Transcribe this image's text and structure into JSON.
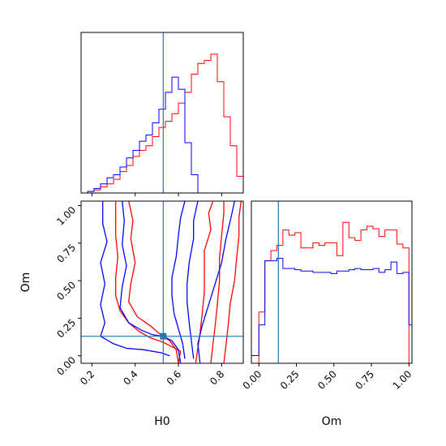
{
  "chart_data": [
    {
      "id": "marg_h0",
      "type": "step-histogram",
      "xlim": [
        0.15,
        0.9
      ],
      "truth": 0.53,
      "colors": {
        "red": "#ff0000",
        "blue": "#0000ff",
        "truth": "#1f77b4"
      },
      "edges": [
        0.15,
        0.18,
        0.21,
        0.24,
        0.27,
        0.3,
        0.33,
        0.36,
        0.39,
        0.42,
        0.45,
        0.48,
        0.51,
        0.54,
        0.57,
        0.6,
        0.63,
        0.66,
        0.69,
        0.72,
        0.75,
        0.78,
        0.81,
        0.84,
        0.87,
        0.9
      ],
      "series": [
        {
          "color": "red",
          "values": [
            0.0,
            0.01,
            0.02,
            0.04,
            0.06,
            0.09,
            0.14,
            0.18,
            0.24,
            0.28,
            0.31,
            0.37,
            0.43,
            0.47,
            0.52,
            0.59,
            0.66,
            0.78,
            0.85,
            0.87,
            0.91,
            0.73,
            0.5,
            0.31,
            0.11
          ]
        },
        {
          "color": "blue",
          "values": [
            0.0,
            0.01,
            0.03,
            0.06,
            0.1,
            0.12,
            0.17,
            0.23,
            0.28,
            0.34,
            0.38,
            0.46,
            0.55,
            0.66,
            0.76,
            0.68,
            0.33,
            0.12,
            0.0,
            0.0,
            0.0,
            0.0,
            0.0,
            0.0,
            0.0
          ]
        }
      ]
    },
    {
      "id": "marg_om",
      "type": "step-histogram",
      "xlim": [
        -0.05,
        1.02
      ],
      "truth": 0.13,
      "colors": {
        "red": "#ff0000",
        "blue": "#0000ff",
        "truth": "#1f77b4"
      },
      "edges": [
        -0.05,
        0.0,
        0.04,
        0.08,
        0.12,
        0.16,
        0.2,
        0.24,
        0.28,
        0.32,
        0.36,
        0.4,
        0.44,
        0.48,
        0.52,
        0.56,
        0.6,
        0.64,
        0.68,
        0.72,
        0.76,
        0.8,
        0.84,
        0.88,
        0.92,
        0.96,
        1.0,
        1.02
      ],
      "series": [
        {
          "color": "red",
          "values": [
            0.0,
            0.4,
            0.8,
            0.88,
            0.92,
            1.04,
            1.0,
            1.02,
            0.9,
            0.9,
            0.94,
            0.92,
            0.94,
            0.94,
            0.84,
            1.1,
            0.98,
            0.96,
            1.04,
            1.07,
            1.05,
            0.99,
            1.04,
            1.04,
            0.93,
            0.9,
            0.0
          ]
        },
        {
          "color": "blue",
          "values": [
            0.06,
            0.3,
            0.8,
            0.8,
            0.82,
            0.74,
            0.74,
            0.73,
            0.72,
            0.72,
            0.71,
            0.71,
            0.71,
            0.7,
            0.72,
            0.72,
            0.73,
            0.74,
            0.73,
            0.73,
            0.74,
            0.71,
            0.73,
            0.79,
            0.7,
            0.71,
            0.3
          ]
        }
      ]
    },
    {
      "id": "joint",
      "type": "contour",
      "xlabel": "H0",
      "ylabel": "Om",
      "xlim": [
        0.15,
        0.9
      ],
      "ylim": [
        -0.05,
        1.03
      ],
      "xticks": [
        0.2,
        0.4,
        0.6,
        0.8
      ],
      "yticks": [
        0.0,
        0.25,
        0.5,
        0.75,
        1.0
      ],
      "truth": {
        "x": 0.53,
        "y": 0.13
      },
      "colors": {
        "red": "#ff0000",
        "blue": "#0000ff",
        "truth": "#1f77b4"
      },
      "contours": [
        {
          "color": "red",
          "points": [
            [
              0.31,
              1.03
            ],
            [
              0.31,
              0.94
            ],
            [
              0.31,
              0.8
            ],
            [
              0.32,
              0.66
            ],
            [
              0.31,
              0.52
            ],
            [
              0.31,
              0.4
            ],
            [
              0.33,
              0.3
            ],
            [
              0.37,
              0.22
            ],
            [
              0.42,
              0.16
            ],
            [
              0.47,
              0.12
            ],
            [
              0.53,
              0.09
            ],
            [
              0.57,
              0.06
            ],
            [
              0.61,
              0.03
            ],
            [
              0.6,
              -0.05
            ]
          ]
        },
        {
          "color": "red",
          "points": [
            [
              0.68,
              -0.05
            ],
            [
              0.69,
              0.05
            ],
            [
              0.7,
              0.15
            ],
            [
              0.71,
              0.28
            ],
            [
              0.72,
              0.42
            ],
            [
              0.72,
              0.58
            ],
            [
              0.72,
              0.7
            ],
            [
              0.75,
              0.84
            ],
            [
              0.74,
              0.95
            ],
            [
              0.76,
              1.03
            ]
          ]
        },
        {
          "color": "red",
          "points": [
            [
              0.75,
              -0.05
            ],
            [
              0.76,
              0.08
            ],
            [
              0.77,
              0.2
            ],
            [
              0.78,
              0.34
            ],
            [
              0.79,
              0.5
            ],
            [
              0.79,
              0.65
            ],
            [
              0.8,
              0.8
            ],
            [
              0.81,
              0.95
            ],
            [
              0.81,
              1.03
            ]
          ]
        },
        {
          "color": "red",
          "points": [
            [
              0.81,
              -0.05
            ],
            [
              0.82,
              0.07
            ],
            [
              0.83,
              0.2
            ],
            [
              0.84,
              0.35
            ],
            [
              0.86,
              0.5
            ],
            [
              0.87,
              0.66
            ],
            [
              0.88,
              0.8
            ],
            [
              0.88,
              0.92
            ],
            [
              0.89,
              1.03
            ]
          ]
        },
        {
          "color": "red",
          "points": [
            [
              0.37,
              1.03
            ],
            [
              0.39,
              0.9
            ],
            [
              0.38,
              0.78
            ],
            [
              0.4,
              0.62
            ],
            [
              0.38,
              0.48
            ],
            [
              0.37,
              0.36
            ],
            [
              0.41,
              0.26
            ],
            [
              0.47,
              0.2
            ],
            [
              0.51,
              0.15
            ],
            [
              0.56,
              0.1
            ],
            [
              0.59,
              0.04
            ],
            [
              0.6,
              -0.05
            ]
          ]
        },
        {
          "color": "blue",
          "points": [
            [
              0.25,
              1.03
            ],
            [
              0.25,
              0.88
            ],
            [
              0.27,
              0.76
            ],
            [
              0.24,
              0.62
            ],
            [
              0.26,
              0.48
            ],
            [
              0.24,
              0.34
            ],
            [
              0.26,
              0.22
            ],
            [
              0.24,
              0.13
            ],
            [
              0.3,
              0.08
            ],
            [
              0.36,
              0.05
            ],
            [
              0.44,
              0.04
            ],
            [
              0.52,
              0.02
            ],
            [
              0.56,
              0.0
            ]
          ]
        },
        {
          "color": "blue",
          "points": [
            [
              0.34,
              1.03
            ],
            [
              0.35,
              0.9
            ],
            [
              0.34,
              0.74
            ],
            [
              0.36,
              0.6
            ],
            [
              0.34,
              0.46
            ],
            [
              0.33,
              0.32
            ],
            [
              0.37,
              0.22
            ],
            [
              0.43,
              0.17
            ],
            [
              0.48,
              0.14
            ],
            [
              0.53,
              0.13
            ],
            [
              0.57,
              0.1
            ],
            [
              0.6,
              0.04
            ],
            [
              0.61,
              -0.05
            ]
          ]
        },
        {
          "color": "blue",
          "points": [
            [
              0.63,
              1.03
            ],
            [
              0.61,
              0.92
            ],
            [
              0.6,
              0.8
            ],
            [
              0.59,
              0.66
            ],
            [
              0.57,
              0.52
            ],
            [
              0.57,
              0.4
            ],
            [
              0.58,
              0.28
            ],
            [
              0.6,
              0.18
            ],
            [
              0.62,
              0.08
            ],
            [
              0.63,
              -0.02
            ]
          ]
        },
        {
          "color": "blue",
          "points": [
            [
              0.69,
              1.03
            ],
            [
              0.67,
              0.9
            ],
            [
              0.67,
              0.78
            ],
            [
              0.65,
              0.62
            ],
            [
              0.64,
              0.48
            ],
            [
              0.64,
              0.36
            ],
            [
              0.65,
              0.22
            ],
            [
              0.66,
              0.1
            ],
            [
              0.67,
              -0.02
            ]
          ]
        },
        {
          "color": "blue",
          "points": [
            [
              0.86,
              1.03
            ],
            [
              0.84,
              0.9
            ],
            [
              0.82,
              0.78
            ],
            [
              0.8,
              0.62
            ],
            [
              0.77,
              0.48
            ],
            [
              0.74,
              0.34
            ],
            [
              0.71,
              0.2
            ],
            [
              0.69,
              0.08
            ],
            [
              0.7,
              -0.05
            ]
          ]
        }
      ]
    }
  ]
}
